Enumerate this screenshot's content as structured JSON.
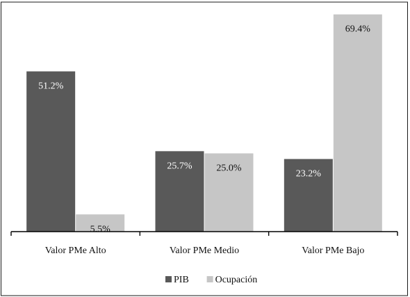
{
  "chart_data": {
    "type": "bar",
    "title": "",
    "xlabel": "",
    "ylabel": "",
    "categories": [
      "Valor PMe Alto",
      "Valor PMe Medio",
      "Valor PMe Bajo"
    ],
    "series": [
      {
        "name": "PIB",
        "values": [
          51.2,
          25.7,
          23.2
        ],
        "labels": [
          "51.2%",
          "25.7%",
          "23.2%"
        ],
        "color": "#595959",
        "label_color": "#ffffff"
      },
      {
        "name": "Ocupación",
        "values": [
          5.5,
          25.0,
          69.4
        ],
        "labels": [
          "5.5%",
          "25.0%",
          "69.4%"
        ],
        "color": "#c6c6c6",
        "label_color": "#111111"
      }
    ],
    "ylim": [
      0,
      72
    ],
    "grid": false,
    "legend": "bottom-center"
  },
  "colors": {
    "pib": "#595959",
    "ocupacion": "#c6c6c6",
    "frame": "#1a1a1a"
  }
}
